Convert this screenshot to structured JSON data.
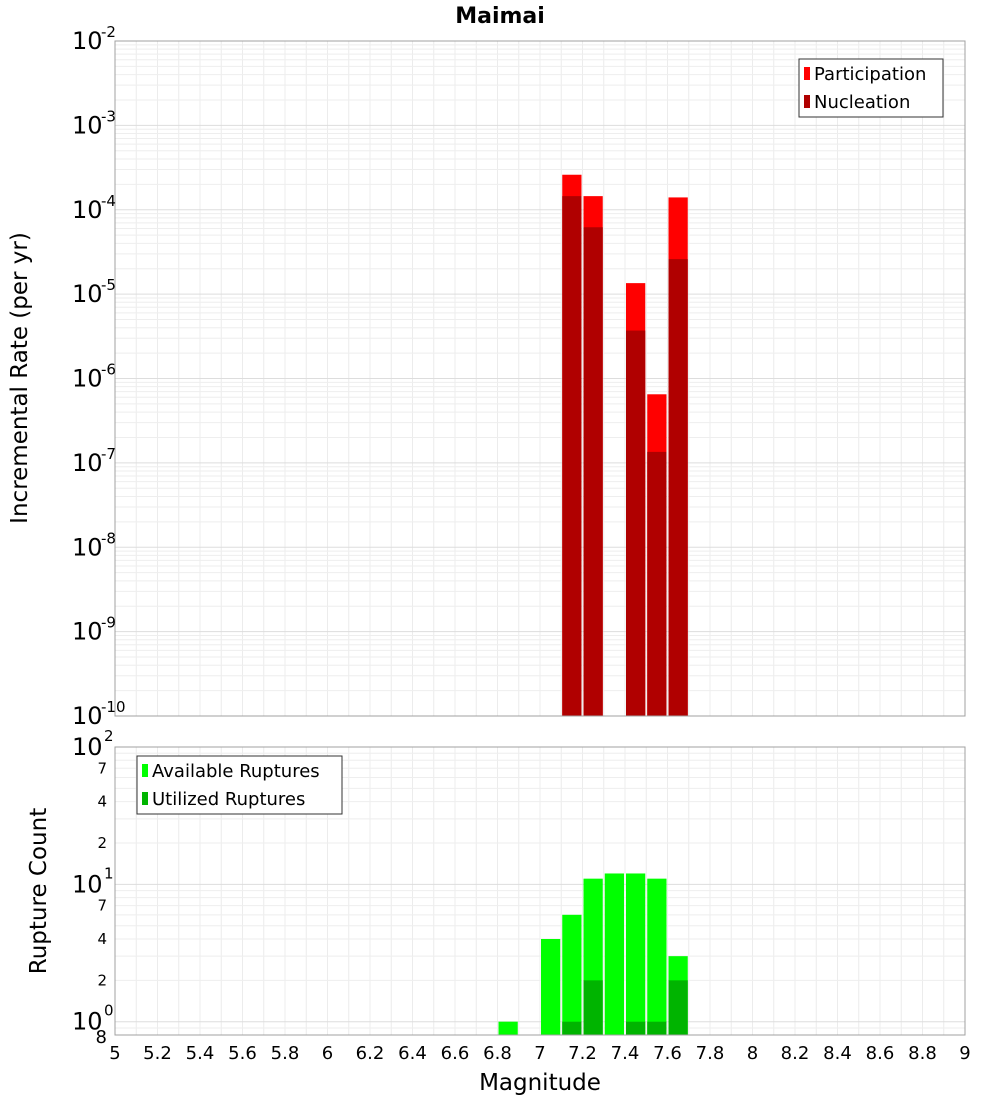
{
  "chart_data": [
    {
      "type": "bar",
      "title": "Maimai",
      "xlabel": "",
      "ylabel": "Incremental Rate (per yr)",
      "yscale": "log",
      "ylim": [
        1e-10,
        0.01
      ],
      "xlim": [
        5,
        9
      ],
      "bin_width": 0.1,
      "grid": true,
      "legend_position": "top-right",
      "y_tick_labels": [
        {
          "base": "10",
          "exp": "-2"
        },
        {
          "base": "10",
          "exp": "-3"
        },
        {
          "base": "10",
          "exp": "-4"
        },
        {
          "base": "10",
          "exp": "-5"
        },
        {
          "base": "10",
          "exp": "-6"
        },
        {
          "base": "10",
          "exp": "-7"
        },
        {
          "base": "10",
          "exp": "-8"
        },
        {
          "base": "10",
          "exp": "-9"
        },
        {
          "base": "10",
          "exp": "-10"
        }
      ],
      "series": [
        {
          "name": "Participation",
          "color": "#ff0000",
          "points": [
            {
              "x": 7.15,
              "y": 0.00026
            },
            {
              "x": 7.25,
              "y": 0.000145
            },
            {
              "x": 7.45,
              "y": 1.35e-05
            },
            {
              "x": 7.55,
              "y": 6.5e-07
            },
            {
              "x": 7.65,
              "y": 0.00014
            }
          ]
        },
        {
          "name": "Nucleation",
          "color": "#b00000",
          "points": [
            {
              "x": 7.15,
              "y": 0.000145
            },
            {
              "x": 7.25,
              "y": 6.2e-05
            },
            {
              "x": 7.45,
              "y": 3.7e-06
            },
            {
              "x": 7.55,
              "y": 1.35e-07
            },
            {
              "x": 7.65,
              "y": 2.6e-05
            }
          ]
        }
      ]
    },
    {
      "type": "bar",
      "title": "",
      "xlabel": "Magnitude",
      "ylabel": "Rupture Count",
      "yscale": "log",
      "ylim": [
        0.8,
        100
      ],
      "xlim": [
        5,
        9
      ],
      "bin_width": 0.1,
      "grid": true,
      "legend_position": "top-left",
      "x_tick_labels": [
        "5",
        "5.2",
        "5.4",
        "5.6",
        "5.8",
        "6",
        "6.2",
        "6.4",
        "6.6",
        "6.8",
        "7",
        "7.2",
        "7.4",
        "7.6",
        "7.8",
        "8",
        "8.2",
        "8.4",
        "8.6",
        "8.8",
        "9"
      ],
      "y_tick_labels": [
        {
          "base": "10",
          "exp": "2"
        },
        {
          "base": "10",
          "exp": "1"
        },
        {
          "base": "10",
          "exp": "0"
        }
      ],
      "y_minor_tick_labels": [
        "7",
        "4",
        "2",
        "7",
        "4",
        "2"
      ],
      "y_bottom_label": "8",
      "series": [
        {
          "name": "Available Ruptures",
          "color": "#00ff00",
          "points": [
            {
              "x": 6.85,
              "y": 1
            },
            {
              "x": 7.05,
              "y": 4
            },
            {
              "x": 7.15,
              "y": 6
            },
            {
              "x": 7.25,
              "y": 11
            },
            {
              "x": 7.35,
              "y": 12
            },
            {
              "x": 7.45,
              "y": 12
            },
            {
              "x": 7.55,
              "y": 11
            },
            {
              "x": 7.65,
              "y": 3
            }
          ]
        },
        {
          "name": "Utilized Ruptures",
          "color": "#00b400",
          "points": [
            {
              "x": 7.15,
              "y": 1
            },
            {
              "x": 7.25,
              "y": 2
            },
            {
              "x": 7.45,
              "y": 1
            },
            {
              "x": 7.55,
              "y": 1
            },
            {
              "x": 7.65,
              "y": 2
            }
          ]
        }
      ]
    }
  ]
}
